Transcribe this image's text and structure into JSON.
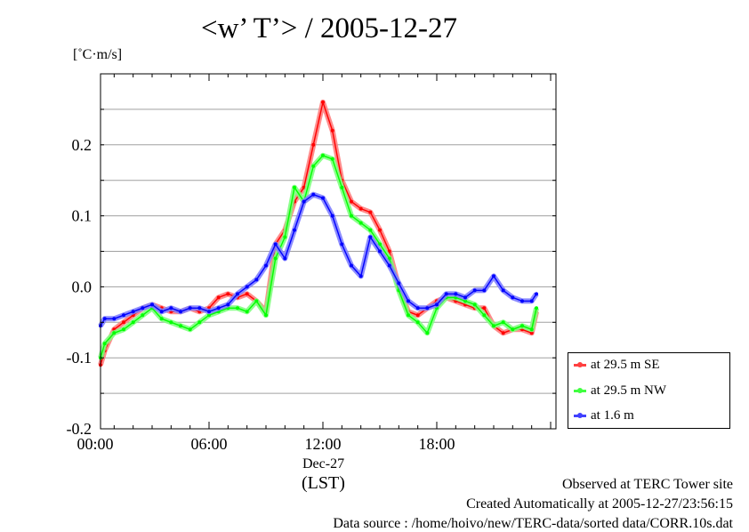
{
  "chart_data": {
    "type": "line",
    "title": "<w’ T’> / 2005-12-27",
    "ylabel": "[˚C·m/s]",
    "xlabel": "(LST)",
    "x_date_label": "Dec-27",
    "x_ticks": [
      "00:00",
      "06:00",
      "12:00",
      "18:00"
    ],
    "y_ticks": [
      "-0.2",
      "-0.1",
      "0.0",
      "0.1",
      "0.2"
    ],
    "ylim": [
      -0.2,
      0.3
    ],
    "xlim_hours": [
      0,
      23.5
    ],
    "grid": true,
    "legend_position": "bottom-right",
    "x_hours": [
      0,
      0.5,
      1,
      1.5,
      2,
      2.5,
      3,
      3.5,
      4,
      4.5,
      5,
      5.5,
      6,
      6.5,
      7,
      7.5,
      8,
      8.5,
      9,
      9.5,
      10,
      10.5,
      11,
      11.5,
      12,
      12.5,
      13,
      13.5,
      14,
      14.5,
      15,
      15.5,
      16,
      16.5,
      17,
      17.5,
      18,
      18.5,
      19,
      19.5,
      20,
      20.5,
      21,
      21.5,
      22,
      22.5,
      23,
      23.25
    ],
    "series": [
      {
        "name": "at 29.5 m SE",
        "color": "#ff0000",
        "values": [
          -0.11,
          -0.09,
          -0.06,
          -0.05,
          -0.04,
          -0.03,
          -0.025,
          -0.03,
          -0.035,
          -0.035,
          -0.03,
          -0.035,
          -0.03,
          -0.015,
          -0.01,
          -0.015,
          -0.01,
          -0.02,
          -0.035,
          0.06,
          0.08,
          0.12,
          0.14,
          0.2,
          0.26,
          0.22,
          0.15,
          0.12,
          0.11,
          0.105,
          0.08,
          0.05,
          0.0,
          -0.035,
          -0.04,
          -0.03,
          -0.02,
          -0.015,
          -0.02,
          -0.025,
          -0.03,
          -0.03,
          -0.055,
          -0.065,
          -0.06,
          -0.06,
          -0.065,
          -0.035
        ]
      },
      {
        "name": "at 29.5 m NW",
        "color": "#00ff00",
        "values": [
          -0.1,
          -0.08,
          -0.065,
          -0.06,
          -0.05,
          -0.04,
          -0.03,
          -0.045,
          -0.05,
          -0.055,
          -0.06,
          -0.05,
          -0.04,
          -0.035,
          -0.03,
          -0.03,
          -0.035,
          -0.02,
          -0.04,
          0.04,
          0.07,
          0.14,
          0.12,
          0.17,
          0.185,
          0.18,
          0.14,
          0.1,
          0.09,
          0.08,
          0.06,
          0.04,
          -0.005,
          -0.04,
          -0.05,
          -0.065,
          -0.03,
          -0.015,
          -0.015,
          -0.02,
          -0.025,
          -0.04,
          -0.055,
          -0.05,
          -0.06,
          -0.055,
          -0.06,
          -0.03
        ]
      },
      {
        "name": "at 1.6 m",
        "color": "#0000ff",
        "values": [
          -0.055,
          -0.045,
          -0.045,
          -0.04,
          -0.035,
          -0.03,
          -0.025,
          -0.035,
          -0.03,
          -0.035,
          -0.03,
          -0.03,
          -0.035,
          -0.03,
          -0.025,
          -0.01,
          0.0,
          0.01,
          0.03,
          0.06,
          0.04,
          0.08,
          0.12,
          0.13,
          0.125,
          0.1,
          0.06,
          0.03,
          0.015,
          0.07,
          0.05,
          0.03,
          0.005,
          -0.02,
          -0.03,
          -0.03,
          -0.025,
          -0.01,
          -0.01,
          -0.015,
          -0.005,
          -0.005,
          0.015,
          -0.005,
          -0.015,
          -0.02,
          -0.02,
          -0.01
        ]
      }
    ]
  },
  "footer": {
    "line1": "Observed at TERC Tower site",
    "line2": "Created Automatically at 2005-12-27/23:56:15",
    "line3": "Data source : /home/hoivo/new/TERC-data/sorted  data/CORR.10s.dat"
  }
}
